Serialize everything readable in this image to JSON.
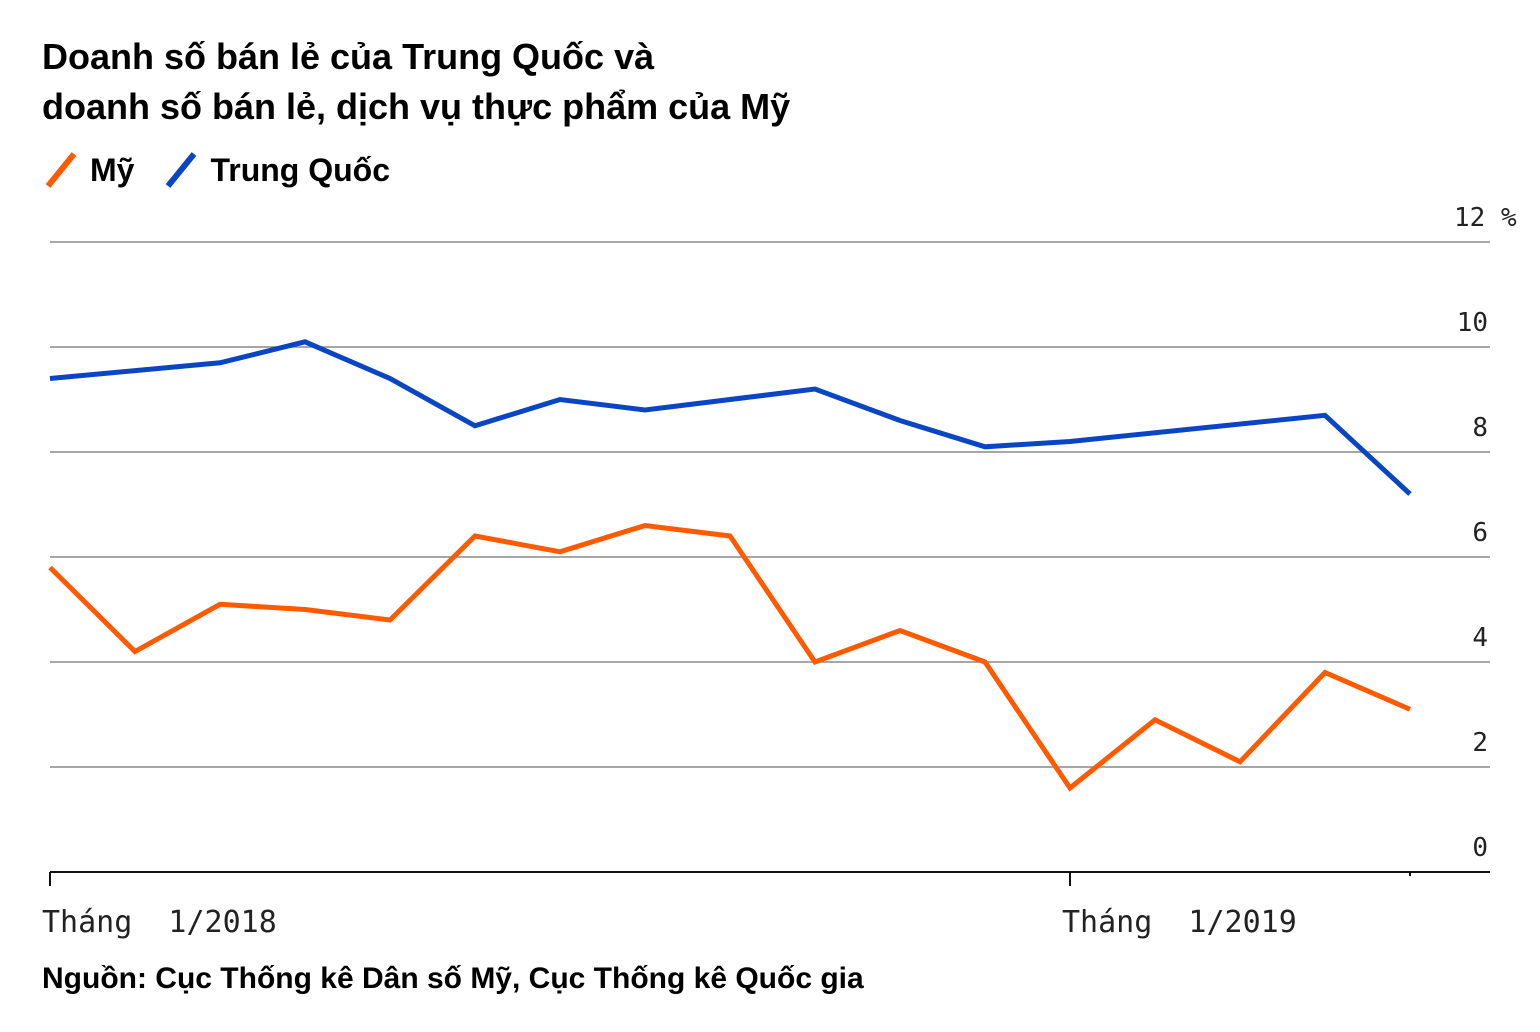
{
  "chart_data": {
    "type": "line",
    "title_lines": [
      "Doanh số bán lẻ của Trung Quốc và",
      "doanh số bán lẻ, dịch vụ thực phẩm của Mỹ"
    ],
    "ylim": [
      0,
      12
    ],
    "y_ticks": [
      {
        "value": 0,
        "label": "0"
      },
      {
        "value": 2,
        "label": "2"
      },
      {
        "value": 4,
        "label": "4"
      },
      {
        "value": 6,
        "label": "6"
      },
      {
        "value": 8,
        "label": "8"
      },
      {
        "value": 10,
        "label": "10"
      },
      {
        "value": 12,
        "label": "12 %"
      }
    ],
    "x_labels": [
      {
        "month_index": 0,
        "label": "Tháng  1/2018"
      },
      {
        "month_index": 12,
        "label": "Tháng  1/2019"
      }
    ],
    "x_range": [
      0,
      17
    ],
    "legend_position": "top-left",
    "grid": true,
    "series": [
      {
        "name": "Mỹ",
        "color": "#ff5a00",
        "points": [
          [
            0,
            5.8
          ],
          [
            1,
            4.2
          ],
          [
            2,
            5.1
          ],
          [
            3,
            5.0
          ],
          [
            4,
            4.8
          ],
          [
            5,
            6.4
          ],
          [
            6,
            6.1
          ],
          [
            7,
            6.6
          ],
          [
            8,
            6.4
          ],
          [
            9,
            4.0
          ],
          [
            10,
            4.6
          ],
          [
            11,
            4.0
          ],
          [
            12,
            1.6
          ],
          [
            13,
            2.9
          ],
          [
            14,
            2.1
          ],
          [
            15,
            3.8
          ],
          [
            16,
            3.1
          ]
        ]
      },
      {
        "name": "Trung Quốc",
        "color": "#0a46c4",
        "points": [
          [
            0,
            9.4
          ],
          [
            2,
            9.7
          ],
          [
            3,
            10.1
          ],
          [
            4,
            9.4
          ],
          [
            5,
            8.5
          ],
          [
            6,
            9.0
          ],
          [
            7,
            8.8
          ],
          [
            9,
            9.2
          ],
          [
            10,
            8.6
          ],
          [
            11,
            8.1
          ],
          [
            12,
            8.2
          ],
          [
            15,
            8.7
          ],
          [
            16,
            7.2
          ]
        ]
      }
    ]
  },
  "source": "Nguồn: Cục Thống kê Dân số Mỹ, Cục Thống kê Quốc gia"
}
